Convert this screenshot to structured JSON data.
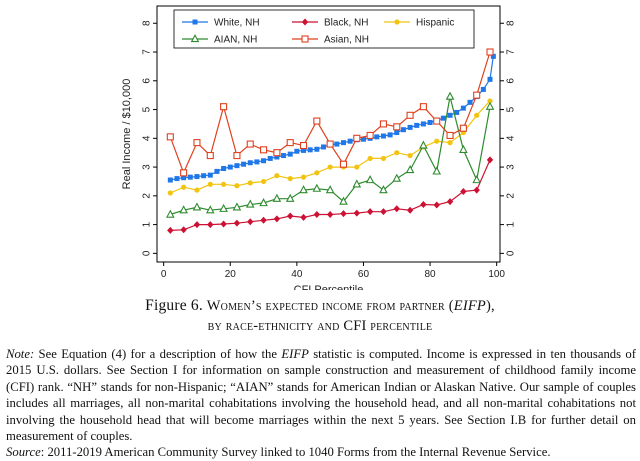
{
  "chart_data": {
    "type": "line",
    "xlabel": "CFI Percentile",
    "ylabel": "Real Income / $10,000",
    "xlim": [
      -2,
      101
    ],
    "ylim": [
      -0.3,
      8.6
    ],
    "xticks": [
      0,
      20,
      40,
      60,
      80,
      100
    ],
    "yticks": [
      0,
      1,
      2,
      3,
      4,
      5,
      6,
      7,
      8
    ],
    "grid": false,
    "legend_position": "top",
    "series": [
      {
        "name": "White, NH",
        "color": "#1f77e8",
        "marker": "square-filled",
        "x": [
          2,
          4,
          6,
          8,
          10,
          12,
          14,
          16,
          18,
          20,
          22,
          24,
          26,
          28,
          30,
          32,
          34,
          36,
          38,
          40,
          42,
          44,
          46,
          48,
          50,
          52,
          54,
          56,
          58,
          60,
          62,
          64,
          66,
          68,
          70,
          72,
          74,
          76,
          78,
          80,
          82,
          84,
          86,
          88,
          90,
          92,
          94,
          96,
          98,
          99
        ],
        "values": [
          2.55,
          2.6,
          2.63,
          2.65,
          2.67,
          2.7,
          2.72,
          2.85,
          2.95,
          3.0,
          3.05,
          3.1,
          3.15,
          3.18,
          3.22,
          3.3,
          3.35,
          3.4,
          3.45,
          3.55,
          3.58,
          3.6,
          3.62,
          3.7,
          3.78,
          3.8,
          3.85,
          3.9,
          3.95,
          3.97,
          4.0,
          4.05,
          4.08,
          4.12,
          4.2,
          4.3,
          4.38,
          4.45,
          4.5,
          4.55,
          4.62,
          4.7,
          4.8,
          4.9,
          5.05,
          5.25,
          5.45,
          5.7,
          6.05,
          6.85
        ]
      },
      {
        "name": "Black, NH",
        "color": "#cc1133",
        "marker": "diamond-filled",
        "x": [
          2,
          6,
          10,
          14,
          18,
          22,
          26,
          30,
          34,
          38,
          42,
          46,
          50,
          54,
          58,
          62,
          66,
          70,
          74,
          78,
          82,
          86,
          90,
          94,
          98
        ],
        "values": [
          0.8,
          0.82,
          1.0,
          1.0,
          1.02,
          1.05,
          1.1,
          1.15,
          1.2,
          1.3,
          1.25,
          1.35,
          1.35,
          1.38,
          1.4,
          1.45,
          1.45,
          1.55,
          1.5,
          1.7,
          1.68,
          1.8,
          2.15,
          2.2,
          3.25
        ]
      },
      {
        "name": "Hispanic",
        "color": "#f2c40f",
        "marker": "circle-filled",
        "x": [
          2,
          6,
          10,
          14,
          18,
          22,
          26,
          30,
          34,
          38,
          42,
          46,
          50,
          54,
          58,
          62,
          66,
          70,
          74,
          78,
          82,
          86,
          90,
          94,
          98
        ],
        "values": [
          2.1,
          2.3,
          2.2,
          2.4,
          2.4,
          2.35,
          2.45,
          2.5,
          2.7,
          2.6,
          2.65,
          2.8,
          3.0,
          3.0,
          3.0,
          3.3,
          3.3,
          3.5,
          3.4,
          3.7,
          3.9,
          3.85,
          4.2,
          4.8,
          5.3
        ]
      },
      {
        "name": "AIAN, NH",
        "color": "#2e8b2e",
        "marker": "triangle-open",
        "x": [
          2,
          6,
          10,
          14,
          18,
          22,
          26,
          30,
          34,
          38,
          42,
          46,
          50,
          54,
          58,
          62,
          66,
          70,
          74,
          78,
          82,
          86,
          90,
          94,
          98
        ],
        "values": [
          1.35,
          1.5,
          1.6,
          1.5,
          1.55,
          1.6,
          1.7,
          1.75,
          1.9,
          1.9,
          2.2,
          2.25,
          2.2,
          1.8,
          2.4,
          2.55,
          2.2,
          2.6,
          2.9,
          3.75,
          2.85,
          5.45,
          3.6,
          2.55,
          5.1
        ]
      },
      {
        "name": "Asian, NH",
        "color": "#e0401e",
        "marker": "square-open",
        "x": [
          2,
          6,
          10,
          14,
          18,
          22,
          26,
          30,
          34,
          38,
          42,
          46,
          50,
          54,
          58,
          62,
          66,
          70,
          74,
          78,
          82,
          86,
          90,
          94,
          98
        ],
        "values": [
          4.05,
          2.8,
          3.85,
          3.4,
          5.1,
          3.4,
          3.8,
          3.6,
          3.5,
          3.85,
          3.75,
          4.6,
          3.8,
          3.1,
          4.0,
          4.1,
          4.5,
          4.4,
          4.8,
          5.1,
          4.6,
          4.1,
          4.35,
          5.5,
          7.0
        ]
      }
    ]
  },
  "caption": {
    "prefix": "Figure 6.",
    "title_line1": "Women’s expected income from partner (",
    "title_line1_italic": "EIFP",
    "title_line1_end": "),",
    "title_line2": "by race-ethnicity and CFI percentile"
  },
  "note": {
    "label": "Note:",
    "text1": " See Equation (4) for a description of how the ",
    "italic1": "EIFP",
    "text2": " statistic is computed. Income is expressed in ten thousands of 2015 U.S. dollars. See Section I for information on sample construction and measurement of childhood family income (CFI) rank. “NH” stands for non-Hispanic; “AIAN” stands for American Indian or Alaskan Native. Our sample of couples includes all marriages, all non-marital cohabitations involving the household head, and all non-marital cohabitations not involving the household head that will become marriages within the next 5 years. See Section I.B for further detail on measurement of couples."
  },
  "source": {
    "label": "Source",
    "text": ": 2011-2019 American Community Survey linked to 1040 Forms from the Internal Revenue Service."
  }
}
